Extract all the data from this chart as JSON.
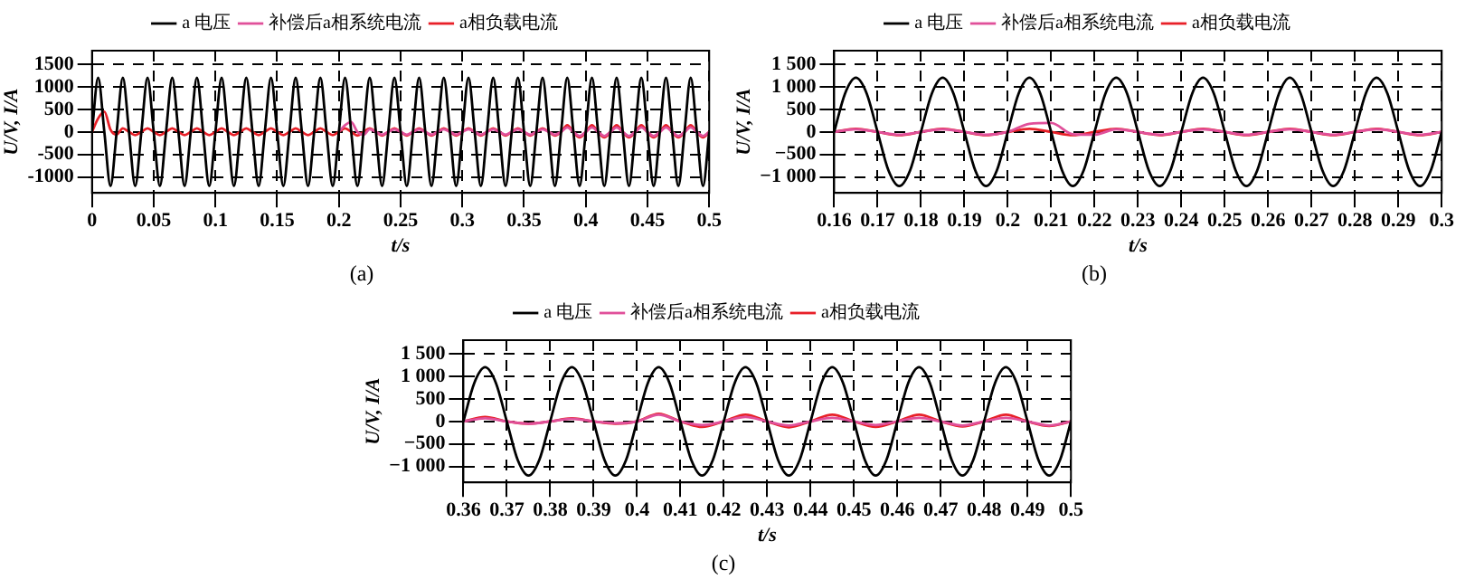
{
  "chart_data": [
    {
      "type": "line",
      "xlabel": "t/s",
      "ylabel": "U/V, I/A",
      "annotations": [
        "(a)"
      ],
      "legend": "top",
      "grid": true,
      "xlim": [
        0,
        0.5
      ],
      "xticks": [
        0,
        0.05,
        0.1,
        0.15,
        0.2,
        0.25,
        0.3,
        0.35,
        0.4,
        0.45,
        0.5
      ],
      "ylim": [
        -1350,
        1800
      ],
      "yticks": [
        -1000,
        -500,
        0,
        500,
        1000,
        1500
      ],
      "series": [
        {
          "name": "a 电压",
          "color": "#000000",
          "x": [
            0,
            0.005,
            0.01,
            0.015,
            0.02,
            0.025,
            0.03,
            0.035,
            0.04,
            0.045,
            0.05,
            0.055,
            0.06,
            0.065,
            0.07,
            0.075,
            0.08,
            0.085,
            0.09,
            0.095,
            0.1,
            0.105,
            0.11,
            0.115,
            0.12,
            0.125,
            0.13,
            0.135,
            0.14,
            0.145,
            0.15,
            0.155,
            0.16,
            0.165,
            0.17,
            0.175,
            0.18,
            0.185,
            0.19,
            0.195,
            0.2,
            0.205,
            0.21,
            0.215,
            0.22,
            0.225,
            0.23,
            0.235,
            0.24,
            0.245,
            0.25,
            0.255,
            0.26,
            0.265,
            0.27,
            0.275,
            0.28,
            0.285,
            0.29,
            0.295,
            0.3,
            0.305,
            0.31,
            0.315,
            0.32,
            0.325,
            0.33,
            0.335,
            0.34,
            0.345,
            0.35,
            0.355,
            0.36,
            0.365,
            0.37,
            0.375,
            0.38,
            0.385,
            0.39,
            0.395,
            0.4,
            0.405,
            0.41,
            0.415,
            0.42,
            0.425,
            0.43,
            0.435,
            0.44,
            0.445,
            0.45,
            0.455,
            0.46,
            0.465,
            0.47,
            0.475,
            0.48,
            0.485,
            0.49,
            0.495,
            0.5
          ],
          "values": [
            0,
            1200,
            0,
            -1200,
            0,
            1200,
            0,
            -1200,
            0,
            1200,
            0,
            -1200,
            0,
            1200,
            0,
            -1200,
            0,
            1200,
            0,
            -1200,
            0,
            1200,
            0,
            -1200,
            0,
            1200,
            0,
            -1200,
            0,
            1200,
            0,
            -1200,
            0,
            1200,
            0,
            -1200,
            0,
            1200,
            0,
            -1200,
            0,
            1200,
            0,
            -1200,
            0,
            1200,
            0,
            -1200,
            0,
            1200,
            0,
            -1200,
            0,
            1200,
            0,
            -1200,
            0,
            1200,
            0,
            -1200,
            0,
            1200,
            0,
            -1200,
            0,
            1200,
            0,
            -1200,
            0,
            1200,
            0,
            -1200,
            0,
            1200,
            0,
            -1200,
            0,
            1200,
            0,
            -1200,
            0,
            1200,
            0,
            -1200,
            0,
            1200,
            0,
            -1200,
            0,
            1200,
            0,
            -1200,
            0,
            1200,
            0,
            -1200,
            0,
            1200,
            0,
            -1200,
            0
          ]
        },
        {
          "name": "补偿后a相系统电流",
          "color": "#e0509a",
          "x": [
            0.2,
            0.205,
            0.21,
            0.215,
            0.22,
            0.225,
            0.23,
            0.235,
            0.24,
            0.245,
            0.25,
            0.255,
            0.26,
            0.265,
            0.27,
            0.275,
            0.28,
            0.285,
            0.29,
            0.295,
            0.3,
            0.305,
            0.31,
            0.315,
            0.32,
            0.325,
            0.33,
            0.335,
            0.34,
            0.345,
            0.35,
            0.355,
            0.36,
            0.365,
            0.37,
            0.375,
            0.38,
            0.385,
            0.39,
            0.395,
            0.4,
            0.405,
            0.41,
            0.415,
            0.42,
            0.425,
            0.43,
            0.435,
            0.44,
            0.445,
            0.45,
            0.455,
            0.46,
            0.465,
            0.47,
            0.475,
            0.48,
            0.485,
            0.49,
            0.495,
            0.5
          ],
          "values": [
            0,
            150,
            220,
            0,
            -60,
            60,
            0,
            -60,
            0,
            60,
            0,
            -60,
            0,
            60,
            0,
            -60,
            0,
            60,
            0,
            -60,
            0,
            60,
            0,
            -60,
            0,
            60,
            0,
            -60,
            0,
            60,
            0,
            -60,
            0,
            60,
            0,
            -60,
            0,
            100,
            0,
            -90,
            0,
            100,
            0,
            -90,
            0,
            100,
            0,
            -90,
            0,
            100,
            0,
            -90,
            0,
            100,
            0,
            -90,
            0,
            100,
            0,
            -90,
            0
          ]
        },
        {
          "name": "a相负载电流",
          "color": "#e82028",
          "x": [
            0,
            0.005,
            0.01,
            0.015,
            0.02,
            0.025,
            0.03,
            0.035,
            0.04,
            0.045,
            0.05,
            0.055,
            0.06,
            0.065,
            0.07,
            0.075,
            0.08,
            0.085,
            0.09,
            0.095,
            0.1,
            0.105,
            0.11,
            0.115,
            0.12,
            0.125,
            0.13,
            0.135,
            0.14,
            0.145,
            0.15,
            0.155,
            0.16,
            0.165,
            0.17,
            0.175,
            0.18,
            0.185,
            0.19,
            0.195,
            0.2,
            0.205,
            0.21,
            0.215,
            0.22,
            0.225,
            0.23,
            0.235,
            0.24,
            0.245,
            0.25,
            0.255,
            0.26,
            0.265,
            0.27,
            0.275,
            0.28,
            0.285,
            0.29,
            0.295,
            0.3,
            0.305,
            0.31,
            0.315,
            0.32,
            0.325,
            0.33,
            0.335,
            0.34,
            0.345,
            0.35,
            0.355,
            0.36,
            0.365,
            0.37,
            0.375,
            0.38,
            0.385,
            0.39,
            0.395,
            0.4,
            0.405,
            0.41,
            0.415,
            0.42,
            0.425,
            0.43,
            0.435,
            0.44,
            0.445,
            0.45,
            0.455,
            0.46,
            0.465,
            0.47,
            0.475,
            0.48,
            0.485,
            0.49,
            0.495,
            0.5
          ],
          "values": [
            0,
            300,
            450,
            50,
            -60,
            80,
            0,
            -70,
            0,
            80,
            0,
            -70,
            0,
            80,
            0,
            -70,
            0,
            80,
            0,
            -70,
            0,
            80,
            0,
            -70,
            0,
            80,
            0,
            -70,
            0,
            80,
            0,
            -70,
            0,
            80,
            0,
            -70,
            0,
            80,
            0,
            -70,
            0,
            80,
            0,
            -80,
            0,
            80,
            0,
            -80,
            0,
            80,
            0,
            -80,
            0,
            80,
            0,
            -80,
            0,
            80,
            0,
            -80,
            0,
            80,
            0,
            -80,
            0,
            80,
            0,
            -80,
            0,
            80,
            0,
            -80,
            0,
            80,
            0,
            -80,
            0,
            150,
            0,
            -120,
            0,
            150,
            0,
            -120,
            0,
            150,
            0,
            -120,
            0,
            150,
            0,
            -120,
            0,
            150,
            0,
            -120,
            0,
            150,
            0,
            -120,
            0
          ]
        }
      ]
    },
    {
      "type": "line",
      "xlabel": "t/s",
      "ylabel": "U/V, I/A",
      "annotations": [
        "(b)"
      ],
      "legend": "top",
      "grid": true,
      "xlim": [
        0.16,
        0.3
      ],
      "xticks": [
        0.16,
        0.17,
        0.18,
        0.19,
        0.2,
        0.21,
        0.22,
        0.23,
        0.24,
        0.25,
        0.26,
        0.27,
        0.28,
        0.29,
        0.3
      ],
      "ylim": [
        -1350,
        1800
      ],
      "yticks": [
        {
          "value": -1000,
          "label": "−1 000"
        },
        {
          "value": -500,
          "label": "−500"
        },
        0,
        500,
        {
          "value": 1000,
          "label": "1 000"
        },
        {
          "value": 1500,
          "label": "1 500"
        }
      ],
      "series": [
        {
          "name": "a 电压",
          "color": "#000000",
          "x": [
            0.16,
            0.1625,
            0.165,
            0.1675,
            0.17,
            0.1725,
            0.175,
            0.1775,
            0.18,
            0.1825,
            0.185,
            0.1875,
            0.19,
            0.1925,
            0.195,
            0.1975,
            0.2,
            0.2025,
            0.205,
            0.2075,
            0.21,
            0.2125,
            0.215,
            0.2175,
            0.22,
            0.2225,
            0.225,
            0.2275,
            0.23,
            0.2325,
            0.235,
            0.2375,
            0.24,
            0.2425,
            0.245,
            0.2475,
            0.25,
            0.2525,
            0.255,
            0.2575,
            0.26,
            0.2625,
            0.265,
            0.2675,
            0.27,
            0.2725,
            0.275,
            0.2775,
            0.28,
            0.2825,
            0.285,
            0.2875,
            0.29,
            0.2925,
            0.295,
            0.2975,
            0.3
          ],
          "values": [
            0,
            850,
            1200,
            850,
            0,
            -850,
            -1200,
            -850,
            0,
            850,
            1200,
            850,
            0,
            -850,
            -1200,
            -850,
            0,
            850,
            1200,
            850,
            0,
            -850,
            -1200,
            -850,
            0,
            850,
            1200,
            850,
            0,
            -850,
            -1200,
            -850,
            0,
            850,
            1200,
            850,
            0,
            -850,
            -1200,
            -850,
            0,
            850,
            1200,
            850,
            0,
            -850,
            -1200,
            -850,
            0,
            850,
            1200,
            850,
            0,
            -850,
            -1200,
            -850,
            0
          ]
        },
        {
          "name": "补偿后a相系统电流",
          "color": "#e0509a",
          "x": [
            0.16,
            0.165,
            0.17,
            0.175,
            0.18,
            0.185,
            0.19,
            0.195,
            0.2,
            0.205,
            0.21,
            0.215,
            0.22,
            0.225,
            0.23,
            0.235,
            0.24,
            0.245,
            0.25,
            0.255,
            0.26,
            0.265,
            0.27,
            0.275,
            0.28,
            0.285,
            0.29,
            0.295,
            0.3
          ],
          "values": [
            0,
            60,
            0,
            -60,
            0,
            60,
            0,
            -60,
            0,
            180,
            200,
            -50,
            -60,
            60,
            0,
            -60,
            0,
            60,
            0,
            -60,
            0,
            60,
            0,
            -60,
            0,
            60,
            0,
            -60,
            0
          ]
        },
        {
          "name": "a相负载电流",
          "color": "#e82028",
          "x": [
            0.16,
            0.165,
            0.17,
            0.175,
            0.18,
            0.185,
            0.19,
            0.195,
            0.2,
            0.205,
            0.21,
            0.215,
            0.22,
            0.225,
            0.23,
            0.235,
            0.24,
            0.245,
            0.25,
            0.255,
            0.26,
            0.265,
            0.27,
            0.275,
            0.28,
            0.285,
            0.29,
            0.295,
            0.3
          ],
          "values": [
            0,
            70,
            0,
            -70,
            0,
            70,
            0,
            -70,
            0,
            70,
            0,
            -70,
            0,
            70,
            0,
            -70,
            0,
            70,
            0,
            -70,
            0,
            70,
            0,
            -70,
            0,
            70,
            0,
            -70,
            0
          ]
        }
      ]
    },
    {
      "type": "line",
      "xlabel": "t/s",
      "ylabel": "U/V, I/A",
      "annotations": [
        "(c)"
      ],
      "legend": "top",
      "grid": true,
      "xlim": [
        0.36,
        0.5
      ],
      "xticks": [
        0.36,
        0.37,
        0.38,
        0.39,
        0.4,
        0.41,
        0.42,
        0.43,
        0.44,
        0.45,
        0.46,
        0.47,
        0.48,
        0.49,
        0.5
      ],
      "ylim": [
        -1350,
        1800
      ],
      "yticks": [
        {
          "value": -1000,
          "label": "−1 000"
        },
        {
          "value": -500,
          "label": "−500"
        },
        0,
        500,
        {
          "value": 1000,
          "label": "1 000"
        },
        {
          "value": 1500,
          "label": "1 500"
        }
      ],
      "series": [
        {
          "name": "a 电压",
          "color": "#000000",
          "x": [
            0.36,
            0.3625,
            0.365,
            0.3675,
            0.37,
            0.3725,
            0.375,
            0.3775,
            0.38,
            0.3825,
            0.385,
            0.3875,
            0.39,
            0.3925,
            0.395,
            0.3975,
            0.4,
            0.4025,
            0.405,
            0.4075,
            0.41,
            0.4125,
            0.415,
            0.4175,
            0.42,
            0.4225,
            0.425,
            0.4275,
            0.43,
            0.4325,
            0.435,
            0.4375,
            0.44,
            0.4425,
            0.445,
            0.4475,
            0.45,
            0.4525,
            0.455,
            0.4575,
            0.46,
            0.4625,
            0.465,
            0.4675,
            0.47,
            0.4725,
            0.475,
            0.4775,
            0.48,
            0.4825,
            0.485,
            0.4875,
            0.49,
            0.4925,
            0.495,
            0.4975,
            0.5
          ],
          "values": [
            0,
            850,
            1200,
            850,
            0,
            -850,
            -1200,
            -850,
            0,
            850,
            1200,
            850,
            0,
            -850,
            -1200,
            -850,
            0,
            850,
            1200,
            850,
            0,
            -850,
            -1200,
            -850,
            0,
            850,
            1200,
            850,
            0,
            -850,
            -1200,
            -850,
            0,
            850,
            1200,
            850,
            0,
            -850,
            -1200,
            -850,
            0,
            850,
            1200,
            850,
            0,
            -850,
            -1200,
            -850,
            0,
            850,
            1200,
            850,
            0,
            -850,
            -1200,
            -850,
            0
          ]
        },
        {
          "name": "补偿后a相系统电流",
          "color": "#e0509a",
          "x": [
            0.36,
            0.365,
            0.37,
            0.375,
            0.38,
            0.385,
            0.39,
            0.395,
            0.4,
            0.405,
            0.41,
            0.415,
            0.42,
            0.425,
            0.43,
            0.435,
            0.44,
            0.445,
            0.45,
            0.455,
            0.46,
            0.465,
            0.47,
            0.475,
            0.48,
            0.485,
            0.49,
            0.495,
            0.5
          ],
          "values": [
            0,
            70,
            0,
            -50,
            0,
            60,
            0,
            -40,
            0,
            150,
            0,
            -80,
            0,
            100,
            0,
            -90,
            0,
            80,
            0,
            -80,
            0,
            80,
            0,
            -90,
            0,
            80,
            0,
            -90,
            0
          ]
        },
        {
          "name": "a相负载电流",
          "color": "#e82028",
          "x": [
            0.36,
            0.365,
            0.37,
            0.375,
            0.38,
            0.385,
            0.39,
            0.395,
            0.4,
            0.405,
            0.41,
            0.415,
            0.42,
            0.425,
            0.43,
            0.435,
            0.44,
            0.445,
            0.45,
            0.455,
            0.46,
            0.465,
            0.47,
            0.475,
            0.48,
            0.485,
            0.49,
            0.495,
            0.5
          ],
          "values": [
            0,
            100,
            0,
            -50,
            0,
            70,
            0,
            -50,
            0,
            170,
            0,
            -120,
            0,
            150,
            0,
            -130,
            0,
            150,
            0,
            -120,
            0,
            150,
            0,
            -110,
            0,
            150,
            0,
            -100,
            0
          ]
        }
      ]
    }
  ]
}
